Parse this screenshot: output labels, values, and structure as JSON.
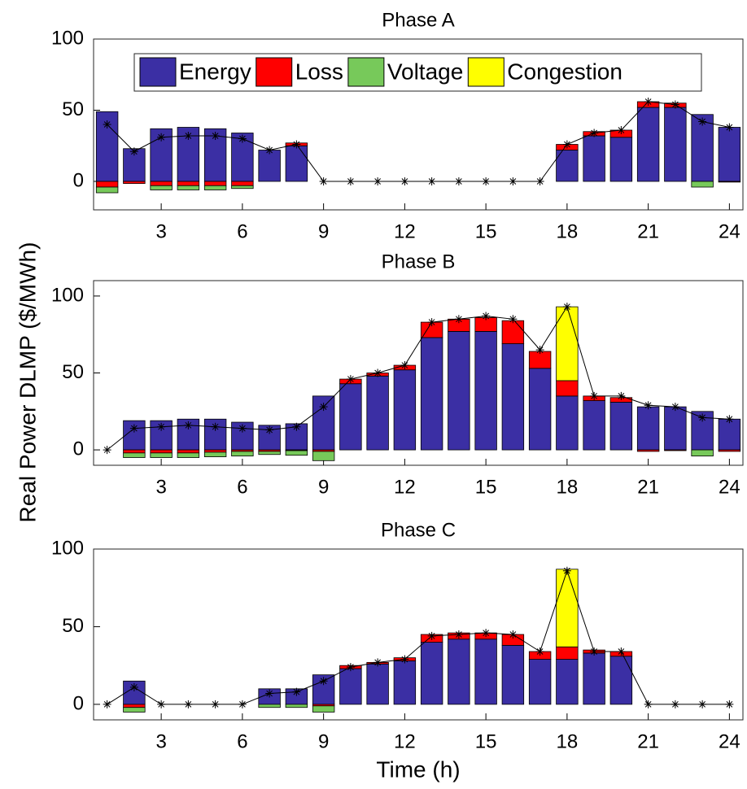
{
  "chart_data": [
    {
      "type": "bar",
      "stacked": true,
      "title": "Phase A",
      "ylabel": "Real Power DLMP ($/MWh)",
      "x": [
        1,
        2,
        3,
        4,
        5,
        6,
        7,
        8,
        9,
        10,
        11,
        12,
        13,
        14,
        15,
        16,
        17,
        18,
        19,
        20,
        21,
        22,
        23,
        24
      ],
      "xlim": [
        0.5,
        24.5
      ],
      "xticks": [
        3,
        6,
        9,
        12,
        15,
        18,
        21,
        24
      ],
      "ylim": [
        -20,
        100
      ],
      "yticks": [
        0,
        50,
        100
      ],
      "grid": false,
      "legend": "top",
      "series": [
        {
          "name": "Energy",
          "color": "#3b2fa4",
          "values": [
            49,
            23,
            37,
            38,
            37,
            34,
            22,
            25,
            0,
            0,
            0,
            0,
            0,
            0,
            0,
            0,
            0,
            22,
            32,
            31,
            52,
            52,
            47,
            38
          ]
        },
        {
          "name": "Loss",
          "color": "#ff0000",
          "values": [
            -4,
            -1.5,
            -3,
            -3,
            -3,
            -3,
            0,
            2,
            0,
            0,
            0,
            0,
            0,
            0,
            0,
            0,
            0,
            4,
            3,
            5,
            4,
            3,
            0,
            -0.5
          ]
        },
        {
          "name": "Voltage",
          "color": "#77c95a",
          "values": [
            -4,
            0,
            -3,
            -3,
            -3,
            -2,
            0,
            0,
            0,
            0,
            0,
            0,
            0,
            0,
            0,
            0,
            0,
            0,
            0,
            0,
            0,
            0,
            -4,
            0
          ]
        },
        {
          "name": "Congestion",
          "color": "#ffff00",
          "values": [
            0,
            0,
            0,
            0,
            0,
            0,
            0,
            0,
            0,
            0,
            0,
            0,
            0,
            0,
            0,
            0,
            0,
            0,
            0,
            0,
            0,
            0,
            0,
            0
          ]
        }
      ],
      "total": {
        "color": "#000000",
        "values": [
          40,
          21,
          31,
          32,
          32,
          30,
          22,
          26,
          0,
          0,
          0,
          0,
          0,
          0,
          0,
          0,
          0,
          26,
          34,
          36,
          56,
          54,
          42,
          38
        ]
      }
    },
    {
      "type": "bar",
      "stacked": true,
      "title": "Phase B",
      "x": [
        1,
        2,
        3,
        4,
        5,
        6,
        7,
        8,
        9,
        10,
        11,
        12,
        13,
        14,
        15,
        16,
        17,
        18,
        19,
        20,
        21,
        22,
        23,
        24
      ],
      "xlim": [
        0.5,
        24.5
      ],
      "xticks": [
        3,
        6,
        9,
        12,
        15,
        18,
        21,
        24
      ],
      "ylim": [
        -10,
        110
      ],
      "yticks": [
        0,
        50,
        100
      ],
      "grid": false,
      "series": [
        {
          "color": "#3b2fa4",
          "values": [
            0,
            19,
            19,
            20,
            20,
            18,
            16,
            17,
            35,
            43,
            48,
            52,
            73,
            77,
            77,
            69,
            53,
            35,
            32,
            31,
            28,
            28,
            25,
            20
          ]
        },
        {
          "color": "#ff0000",
          "values": [
            0,
            -2,
            -2,
            -2,
            -1.5,
            -1,
            -1,
            -0.5,
            -1,
            3,
            2,
            3,
            10,
            8,
            9,
            15,
            11,
            10,
            3,
            3,
            -1,
            -0.5,
            0,
            -1
          ]
        },
        {
          "color": "#77c95a",
          "values": [
            0,
            -3,
            -3,
            -3,
            -3,
            -3,
            -2,
            -3,
            -6,
            0,
            0,
            0,
            0,
            0,
            0,
            0,
            0,
            0,
            0,
            0,
            0,
            0,
            -4,
            0
          ]
        },
        {
          "color": "#ffff00",
          "values": [
            0,
            0,
            0,
            0,
            0,
            0,
            0,
            0,
            0,
            0,
            0,
            0,
            0,
            0,
            0,
            0,
            0,
            48,
            0,
            0,
            0,
            0,
            0,
            0
          ]
        }
      ],
      "total": {
        "color": "#000000",
        "values": [
          0,
          14,
          15,
          16,
          15,
          14,
          13,
          15,
          28,
          46,
          50,
          55,
          83,
          85,
          87,
          85,
          65,
          93,
          35,
          35,
          29,
          28,
          21,
          20
        ]
      }
    },
    {
      "type": "bar",
      "stacked": true,
      "title": "Phase C",
      "xlabel": "Time (h)",
      "x": [
        1,
        2,
        3,
        4,
        5,
        6,
        7,
        8,
        9,
        10,
        11,
        12,
        13,
        14,
        15,
        16,
        17,
        18,
        19,
        20,
        21,
        22,
        23,
        24
      ],
      "xlim": [
        0.5,
        24.5
      ],
      "xticks": [
        3,
        6,
        9,
        12,
        15,
        18,
        21,
        24
      ],
      "ylim": [
        -10,
        100
      ],
      "yticks": [
        0,
        50,
        100
      ],
      "grid": false,
      "series": [
        {
          "color": "#3b2fa4",
          "values": [
            0,
            15,
            0,
            0,
            0,
            0,
            10,
            10,
            19,
            23,
            26,
            28,
            40,
            42,
            42,
            38,
            29,
            29,
            33,
            31,
            0,
            0,
            0,
            0
          ]
        },
        {
          "color": "#ff0000",
          "values": [
            0,
            -2,
            0,
            0,
            0,
            0,
            0,
            0,
            -1,
            2,
            1,
            2,
            5,
            4,
            4,
            7,
            5,
            8,
            2,
            3,
            0,
            0,
            0,
            0
          ]
        },
        {
          "color": "#77c95a",
          "values": [
            0,
            -3,
            0,
            0,
            0,
            0,
            -2,
            -2,
            -4,
            0,
            0,
            0,
            0,
            0,
            0,
            0,
            0,
            0,
            0,
            0,
            0,
            0,
            0,
            0
          ]
        },
        {
          "color": "#ffff00",
          "values": [
            0,
            0,
            0,
            0,
            0,
            0,
            0,
            0,
            0,
            0,
            0,
            0,
            0,
            0,
            0,
            0,
            0,
            50,
            0,
            0,
            0,
            0,
            0,
            0
          ]
        }
      ],
      "total": {
        "color": "#000000",
        "values": [
          0,
          11,
          0,
          0,
          0,
          0,
          7,
          8,
          15,
          24,
          27,
          29,
          44,
          45,
          46,
          45,
          34,
          86,
          34,
          34,
          0,
          0,
          0,
          0
        ]
      }
    }
  ]
}
